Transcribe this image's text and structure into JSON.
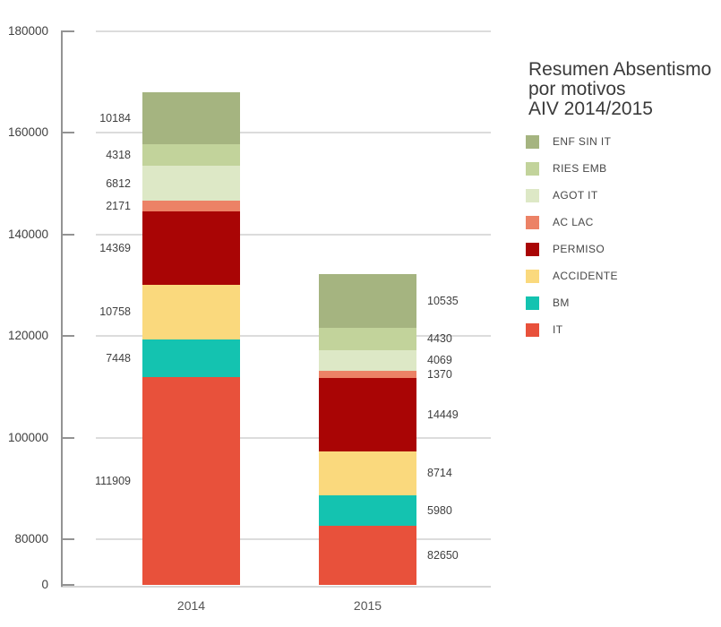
{
  "title": {
    "line1": "Resumen Absentismo",
    "line2": "por motivos",
    "line3": "AIV 2014/2015"
  },
  "chart_data": {
    "type": "bar",
    "stacked": true,
    "title": "Resumen Absentismo por motivos AIV 2014/2015",
    "categories": [
      "2014",
      "2015"
    ],
    "series": [
      {
        "name": "IT",
        "color": "#e8513b",
        "values": [
          111909,
          82650
        ]
      },
      {
        "name": "BM",
        "color": "#14c3b0",
        "values": [
          7448,
          5980
        ]
      },
      {
        "name": "ACCIDENTE",
        "color": "#fad97d",
        "values": [
          10758,
          8714
        ]
      },
      {
        "name": "PERMISO",
        "color": "#a90505",
        "values": [
          14369,
          14449
        ]
      },
      {
        "name": "AC LAC",
        "color": "#ec8266",
        "values": [
          2171,
          1370
        ]
      },
      {
        "name": "AGOT IT",
        "color": "#dde8c6",
        "values": [
          6812,
          4069
        ]
      },
      {
        "name": "RIES EMB",
        "color": "#c2d39b",
        "values": [
          4318,
          4430
        ]
      },
      {
        "name": "ENF SIN IT",
        "color": "#a5b480",
        "values": [
          10184,
          10535
        ]
      }
    ],
    "y_axis": {
      "ticks": [
        0,
        80000,
        100000,
        120000,
        140000,
        160000,
        180000
      ],
      "max": 180000,
      "broken_axis_below": 80000
    },
    "grid": true,
    "legend_position": "right",
    "legend_order_top_to_bottom": [
      "ENF SIN IT",
      "RIES EMB",
      "AGOT IT",
      "AC LAC",
      "PERMISO",
      "ACCIDENTE",
      "BM",
      "IT"
    ],
    "value_labels_2014_side": "left",
    "value_labels_2015_side": "right"
  }
}
